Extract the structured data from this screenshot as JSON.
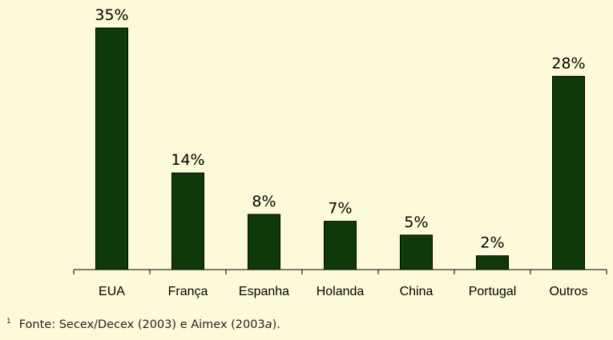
{
  "chart_data": {
    "type": "bar",
    "categories": [
      "EUA",
      "França",
      "Espanha",
      "Holanda",
      "China",
      "Portugal",
      "Outros"
    ],
    "values": [
      35,
      14,
      8,
      7,
      5,
      2,
      28
    ],
    "value_labels": [
      "35%",
      "14%",
      "8%",
      "7%",
      "5%",
      "2%",
      "28%"
    ],
    "title": "",
    "xlabel": "",
    "ylabel": "",
    "ylim": [
      0,
      35
    ],
    "grid": false,
    "bar_color": "#0E3A0A",
    "background_color": "#FDFADA"
  },
  "footnote": {
    "marker": "1",
    "text_before": "Fonte: Secex/Decex (2003) e Aimex (2003",
    "text_italic": "a",
    "text_after": ")."
  }
}
